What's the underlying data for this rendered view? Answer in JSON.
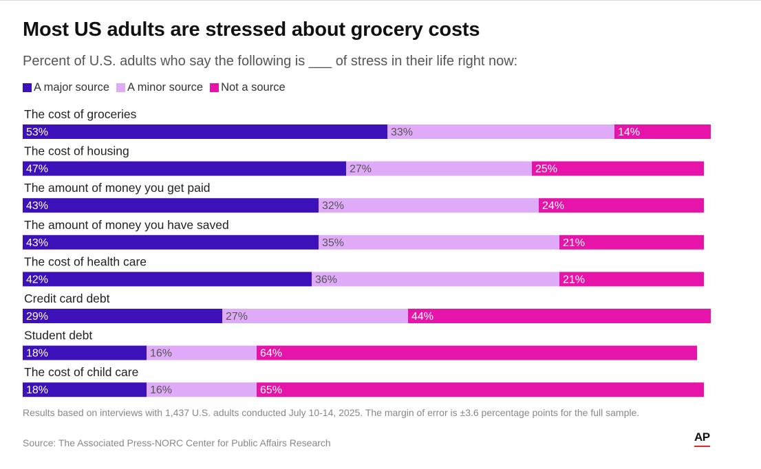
{
  "title": "Most US adults are stressed about grocery costs",
  "subtitle": "Percent of U.S. adults who say the following is ___ of stress in their life right now:",
  "legend": [
    {
      "label": "A major source",
      "color": "#3d11b9"
    },
    {
      "label": "A minor source",
      "color": "#dfaaf7"
    },
    {
      "label": "Not a source",
      "color": "#e714aa"
    }
  ],
  "chart_data": {
    "type": "bar",
    "orientation": "horizontal",
    "stacked": true,
    "categories": [
      "The cost of groceries",
      "The cost of housing",
      "The amount of money you get paid",
      "The amount of money you have saved",
      "The cost of health care",
      "Credit card debt",
      "Student debt",
      "The cost of child care"
    ],
    "series": [
      {
        "name": "A major source",
        "color": "#3d11b9",
        "label_color": "#ffffff",
        "values": [
          53,
          47,
          43,
          43,
          42,
          29,
          18,
          18
        ]
      },
      {
        "name": "A minor source",
        "color": "#dfaaf7",
        "label_color": "#555555",
        "values": [
          33,
          27,
          32,
          35,
          36,
          27,
          16,
          16
        ]
      },
      {
        "name": "Not a source",
        "color": "#e714aa",
        "label_color": "#ffffff",
        "values": [
          14,
          25,
          24,
          21,
          21,
          44,
          64,
          65
        ]
      }
    ],
    "value_suffix": "%",
    "xlim": [
      0,
      100
    ],
    "title": "Most US adults are stressed about grocery costs",
    "subtitle": "Percent of U.S. adults who say the following is ___ of stress in their life right now:",
    "xlabel": "",
    "ylabel": "",
    "legend_position": "top-left",
    "grid": false
  },
  "footnote": "Results based on interviews with 1,437 U.S. adults conducted July 10-14, 2025. The margin of error is ±3.6 percentage points for the full sample.",
  "source": "Source: The Associated Press-NORC Center for Public Affairs Research",
  "logo_text": "AP"
}
